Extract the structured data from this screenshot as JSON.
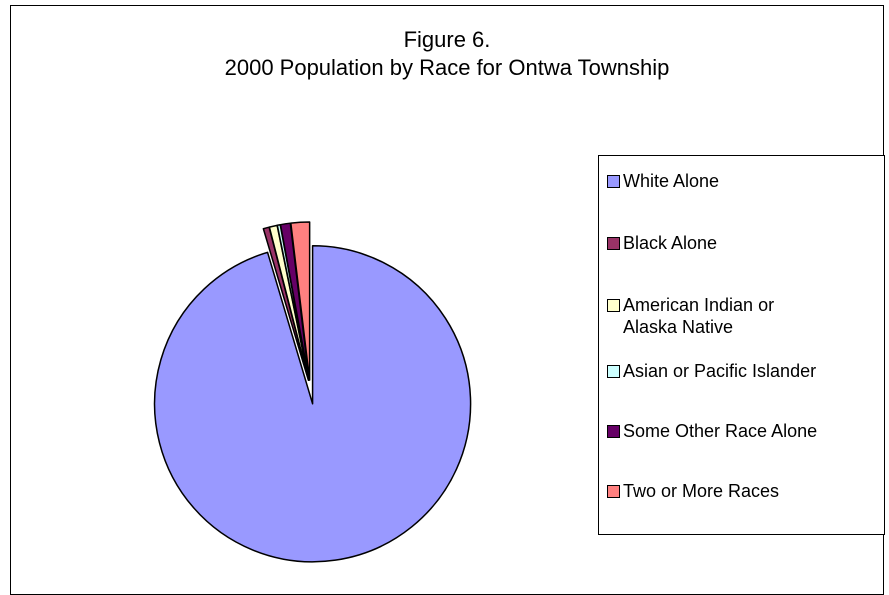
{
  "chart_data": {
    "type": "pie",
    "title": "Figure 6.",
    "subtitle": "2000 Population by Race for Ontwa Township",
    "categories": [
      "White Alone",
      "Black Alone",
      "American Indian or Alaska Native",
      "Asian or Pacific Islander",
      "Some Other Race Alone",
      "Two or More Races"
    ],
    "values": [
      95.4,
      0.6,
      0.8,
      0.3,
      1.0,
      1.9
    ],
    "colors": [
      "#9999ff",
      "#993366",
      "#ffffcc",
      "#ccffff",
      "#660066",
      "#ff8080"
    ],
    "exploded_slice_index": 0,
    "legend_placement": "right"
  }
}
